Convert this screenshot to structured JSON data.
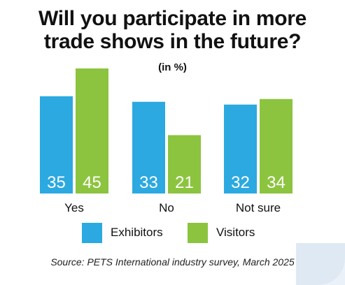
{
  "chart_data": {
    "type": "bar",
    "title": "Will you participate in more trade shows in the future?",
    "subtitle": "(in %)",
    "categories": [
      "Yes",
      "No",
      "Not sure"
    ],
    "series": [
      {
        "name": "Exhibitors",
        "values": [
          35,
          33,
          32
        ],
        "color": "#2ba9e0"
      },
      {
        "name": "Visitors",
        "values": [
          45,
          21,
          34
        ],
        "color": "#8cc43f"
      }
    ],
    "ylim": [
      0,
      45
    ],
    "grid": false,
    "legend_position": "bottom",
    "data_labels": "inside-bottom"
  },
  "header": {
    "title_line1": "Will you participate in more",
    "title_line2": "trade shows in the future?",
    "subtitle": "(in %)"
  },
  "legend": {
    "exhibitors": "Exhibitors",
    "visitors": "Visitors"
  },
  "footer": {
    "source": "Source: PETS International industry survey, March 2025"
  }
}
